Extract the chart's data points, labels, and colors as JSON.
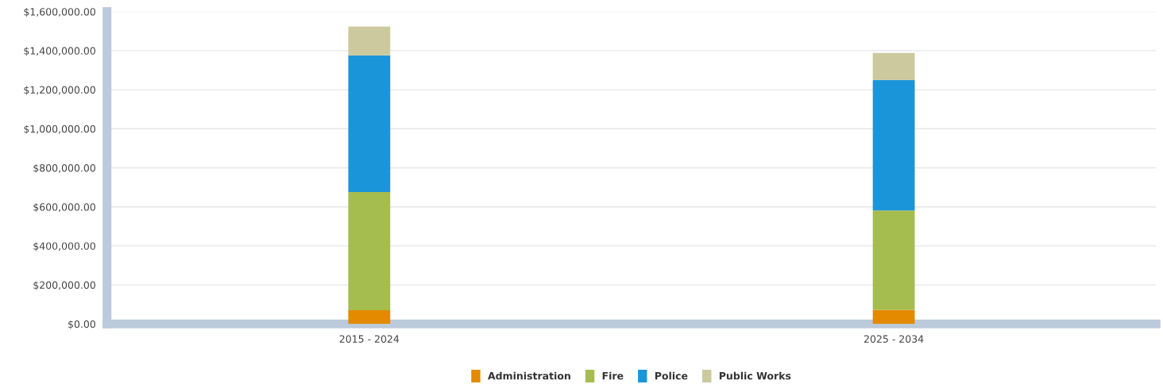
{
  "chart_data": {
    "type": "bar",
    "stacked": true,
    "categories": [
      "2015 - 2024",
      "2025 - 2034"
    ],
    "series": [
      {
        "name": "Administration",
        "color": "#e38a00",
        "values": [
          70000,
          72000
        ]
      },
      {
        "name": "Fire",
        "color": "#a5bc4e",
        "values": [
          606000,
          510000
        ]
      },
      {
        "name": "Police",
        "color": "#1b95d9",
        "values": [
          700000,
          668000
        ]
      },
      {
        "name": "Public Works",
        "color": "#cbc99d",
        "values": [
          147000,
          138000
        ]
      }
    ],
    "ylim": [
      0,
      1600000
    ],
    "yticks": [
      {
        "value": 0,
        "label": "$0.00"
      },
      {
        "value": 200000,
        "label": "$200,000.00"
      },
      {
        "value": 400000,
        "label": "$400,000.00"
      },
      {
        "value": 600000,
        "label": "$600,000.00"
      },
      {
        "value": 800000,
        "label": "$800,000.00"
      },
      {
        "value": 1000000,
        "label": "$1,000,000.00"
      },
      {
        "value": 1200000,
        "label": "$1,200,000.00"
      },
      {
        "value": 1400000,
        "label": "$1,400,000.00"
      },
      {
        "value": 1600000,
        "label": "$1,600,000.00"
      }
    ],
    "grid": "y",
    "legend": "bottom"
  }
}
